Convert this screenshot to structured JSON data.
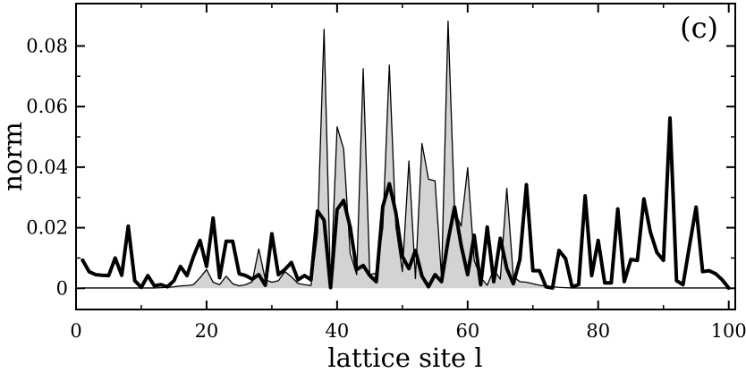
{
  "chart_data": {
    "type": "line",
    "panel_label": "(c)",
    "xlabel": "lattice site l",
    "ylabel": "norm",
    "xlim": [
      0,
      101
    ],
    "ylim": [
      -0.007,
      0.094
    ],
    "x_ticks": [
      0,
      20,
      40,
      60,
      80,
      100
    ],
    "y_ticks": [
      0,
      0.02,
      0.04,
      0.06,
      0.08
    ],
    "x_tick_labels": [
      "0",
      "20",
      "40",
      "60",
      "80",
      "100"
    ],
    "y_tick_labels": [
      "0",
      "0.02",
      "0.04",
      "0.06",
      "0.08"
    ],
    "grid": false,
    "legend": "none",
    "colors": {
      "fill": "#d3d3d3",
      "line": "#000000"
    },
    "series": [
      {
        "style": "thin-line-filled-gray",
        "x": [
          1,
          2,
          3,
          4,
          5,
          6,
          7,
          8,
          9,
          10,
          11,
          12,
          13,
          14,
          15,
          16,
          17,
          18,
          19,
          20,
          21,
          22,
          23,
          24,
          25,
          26,
          27,
          28,
          29,
          30,
          31,
          32,
          33,
          34,
          35,
          36,
          37,
          38,
          39,
          40,
          41,
          42,
          43,
          44,
          45,
          46,
          47,
          48,
          49,
          50,
          51,
          52,
          53,
          54,
          55,
          56,
          57,
          58,
          59,
          60,
          61,
          62,
          63,
          64,
          65,
          66,
          67,
          68,
          69,
          70,
          71,
          72,
          73,
          74,
          75,
          76,
          77,
          78,
          79,
          80,
          81,
          82,
          83,
          84,
          85,
          86,
          87,
          88,
          89,
          90,
          91,
          92,
          93,
          94,
          95,
          96,
          97,
          98,
          99,
          100
        ],
        "values": [
          0.0001,
          0.0001,
          0.0001,
          0.0001,
          0.0001,
          0.0001,
          0.0001,
          0.0001,
          0.0001,
          0.0001,
          0.0001,
          0.0001,
          0.0002,
          0.0003,
          0.0005,
          0.0008,
          0.0009,
          0.0012,
          0.0035,
          0.0062,
          0.002,
          0.0012,
          0.004,
          0.0015,
          0.0008,
          0.0012,
          0.0022,
          0.013,
          0.0028,
          0.002,
          0.0025,
          0.0055,
          0.0038,
          0.0016,
          0.0012,
          0.0009,
          0.018,
          0.0855,
          0.0005,
          0.0533,
          0.046,
          0.0115,
          0.0045,
          0.0725,
          0.0045,
          0.005,
          0.02,
          0.0737,
          0.0205,
          0.0055,
          0.042,
          0.0032,
          0.0478,
          0.036,
          0.0355,
          0.0035,
          0.0882,
          0.0255,
          0.0205,
          0.0398,
          0.0092,
          0.0035,
          0.001,
          0.0062,
          0.003,
          0.033,
          0.0038,
          0.0022,
          0.002,
          0.0015,
          0.001,
          0.0007,
          0.0005,
          0.0003,
          0.0002,
          0.0001,
          0.0001,
          0.0001,
          0.0001,
          0.0001,
          0.0001,
          0.0001,
          0.0001,
          0.0001,
          0.0001,
          0.0001,
          0.0001,
          0.0001,
          0.0001,
          0.0001,
          0.0001,
          0.0001,
          0.0001,
          0.0001,
          0.0001,
          0.0001,
          0.0001,
          0.0001,
          0.0001,
          0.0001
        ]
      },
      {
        "style": "thick-line",
        "x": [
          1,
          2,
          3,
          4,
          5,
          6,
          7,
          8,
          9,
          10,
          11,
          12,
          13,
          14,
          15,
          16,
          17,
          18,
          19,
          20,
          21,
          22,
          23,
          24,
          25,
          26,
          27,
          28,
          29,
          30,
          31,
          32,
          33,
          34,
          35,
          36,
          37,
          38,
          39,
          40,
          41,
          42,
          43,
          44,
          45,
          46,
          47,
          48,
          49,
          50,
          51,
          52,
          53,
          54,
          55,
          56,
          57,
          58,
          59,
          60,
          61,
          62,
          63,
          64,
          65,
          66,
          67,
          68,
          69,
          70,
          71,
          72,
          73,
          74,
          75,
          76,
          77,
          78,
          79,
          80,
          81,
          82,
          83,
          84,
          85,
          86,
          87,
          88,
          89,
          90,
          91,
          92,
          93,
          94,
          95,
          96,
          97,
          98,
          99,
          100
        ],
        "values": [
          0.0093,
          0.0055,
          0.0045,
          0.0043,
          0.0042,
          0.01,
          0.0043,
          0.0205,
          0.0025,
          0.0003,
          0.0042,
          0.0008,
          0.0012,
          0.0005,
          0.0025,
          0.0072,
          0.0042,
          0.0105,
          0.0158,
          0.0072,
          0.0232,
          0.0035,
          0.0155,
          0.0155,
          0.0048,
          0.0042,
          0.003,
          0.0045,
          0.001,
          0.018,
          0.0045,
          0.0062,
          0.0085,
          0.0028,
          0.0042,
          0.0028,
          0.0255,
          0.0225,
          0.0002,
          0.026,
          0.029,
          0.0202,
          0.0062,
          0.0075,
          0.0042,
          0.0022,
          0.027,
          0.0345,
          0.025,
          0.0105,
          0.0065,
          0.0125,
          0.004,
          0.0005,
          0.0045,
          0.0022,
          0.0158,
          0.0268,
          0.0142,
          0.0045,
          0.0175,
          0.0012,
          0.0202,
          0.0022,
          0.0165,
          0.0065,
          0.0015,
          0.0095,
          0.0342,
          0.0058,
          0.0058,
          0.0005,
          0.0001,
          0.0125,
          0.0098,
          0.0005,
          0.0012,
          0.0305,
          0.0042,
          0.0158,
          0.0018,
          0.0018,
          0.0262,
          0.0022,
          0.0095,
          0.0092,
          0.0295,
          0.0185,
          0.0118,
          0.0092,
          0.0562,
          0.0025,
          0.0012,
          0.0142,
          0.0268,
          0.0055,
          0.0058,
          0.0048,
          0.0028,
          0.0001
        ]
      }
    ]
  }
}
